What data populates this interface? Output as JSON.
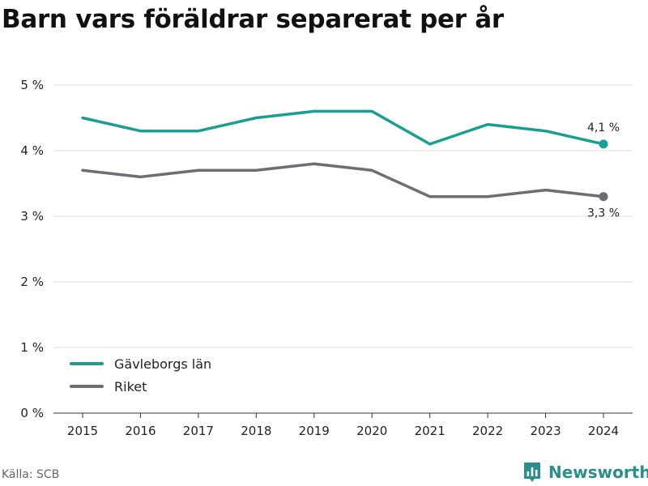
{
  "title": "Barn vars föräldrar separerat per år",
  "source": "Källa: SCB",
  "brand": {
    "name": "Newsworthy",
    "icon": "newsworthy-logo-icon",
    "color": "#2a8f8a"
  },
  "chart_data": {
    "type": "line",
    "x": [
      "2015",
      "2016",
      "2017",
      "2018",
      "2019",
      "2020",
      "2021",
      "2022",
      "2023",
      "2024"
    ],
    "series": [
      {
        "name": "Gävleborgs län",
        "color": "#1a9e94",
        "values": [
          4.5,
          4.3,
          4.3,
          4.5,
          4.6,
          4.6,
          4.1,
          4.4,
          4.3,
          4.1
        ],
        "end_label": "4,1 %"
      },
      {
        "name": "Riket",
        "color": "#6d6e73",
        "values": [
          3.7,
          3.6,
          3.7,
          3.7,
          3.8,
          3.7,
          3.3,
          3.3,
          3.4,
          3.3
        ],
        "end_label": "3,3 %"
      }
    ],
    "y_ticks": [
      0,
      1,
      2,
      3,
      4,
      5
    ],
    "y_tick_labels": [
      "0 %",
      "1 %",
      "2 %",
      "3 %",
      "4 %",
      "5 %"
    ],
    "ylim": [
      0,
      5
    ],
    "grid": true,
    "legend_position": "bottom-left"
  }
}
